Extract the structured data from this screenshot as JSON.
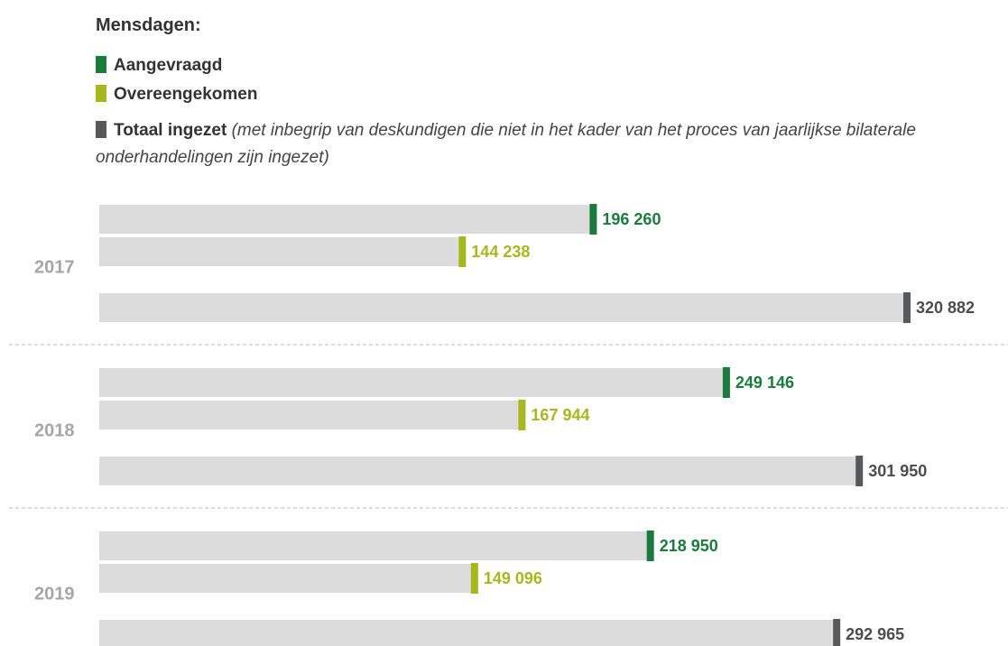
{
  "chart_data": {
    "type": "bar",
    "orientation": "horizontal",
    "title": "Mensdagen:",
    "legend_note": "(met inbegrip van deskundigen die niet in het kader van het proces van jaarlijkse bilaterale onderhandelingen zijn ingezet)",
    "categories": [
      "2017",
      "2018",
      "2019"
    ],
    "series": [
      {
        "name": "Aangevraagd",
        "color": "#1b7b3c",
        "values": [
          196260,
          249146,
          218950
        ],
        "value_labels": [
          "196 260",
          "249 146",
          "218 950"
        ]
      },
      {
        "name": "Overeengekomen",
        "color": "#a7b81e",
        "values": [
          144238,
          167944,
          149096
        ],
        "value_labels": [
          "144 238",
          "167 944",
          "149 096"
        ]
      },
      {
        "name": "Totaal ingezet",
        "color": "#58595b",
        "values": [
          320882,
          301950,
          292965
        ],
        "value_labels": [
          "320 882",
          "301 950",
          "292 965"
        ]
      }
    ]
  }
}
